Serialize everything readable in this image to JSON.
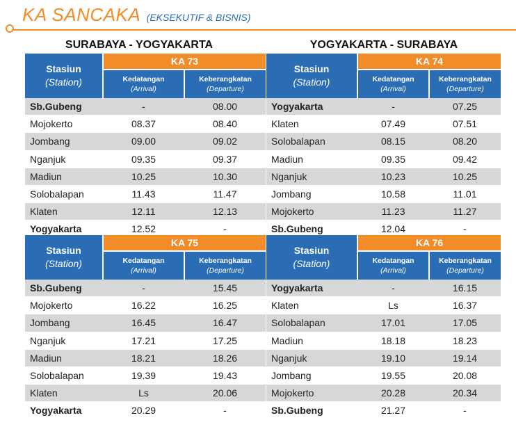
{
  "header": {
    "title": "KA SANCAKA",
    "subtitle": "(EKSEKUTIF & BISNIS)"
  },
  "colors": {
    "orange": "#F28C28",
    "blue": "#2A6DB5",
    "shade": "#D6D7D9"
  },
  "labels": {
    "station": "Stasiun",
    "station_en": "(Station)",
    "arrival": "Kedatangan",
    "arrival_en": "(Arrival)",
    "departure": "Keberangkatan",
    "departure_en": "(Departure)"
  },
  "routes": {
    "sby_yk": "SURABAYA - YOGYAKARTA",
    "yk_sby": "YOGYAKARTA - SURABAYA"
  },
  "tables": [
    {
      "train": "KA 73",
      "rows": [
        [
          "Sb.Gubeng",
          "-",
          "08.00"
        ],
        [
          "Mojokerto",
          "08.37",
          "08.40"
        ],
        [
          "Jombang",
          "09.00",
          "09.02"
        ],
        [
          "Nganjuk",
          "09.35",
          "09.37"
        ],
        [
          "Madiun",
          "10.25",
          "10.30"
        ],
        [
          "Solobalapan",
          "11.43",
          "11.47"
        ],
        [
          "Klaten",
          "12.11",
          "12.13"
        ],
        [
          "Yogyakarta",
          "12.52",
          "-"
        ]
      ]
    },
    {
      "train": "KA 74",
      "rows": [
        [
          "Yogyakarta",
          "-",
          "07.25"
        ],
        [
          "Klaten",
          "07.49",
          "07.51"
        ],
        [
          "Solobalapan",
          "08.15",
          "08.20"
        ],
        [
          "Madiun",
          "09.35",
          "09.42"
        ],
        [
          "Nganjuk",
          "10.23",
          "10.25"
        ],
        [
          "Jombang",
          "10.58",
          "11.01"
        ],
        [
          "Mojokerto",
          "11.23",
          "11.27"
        ],
        [
          "Sb.Gubeng",
          "12.04",
          "-"
        ]
      ]
    },
    {
      "train": "KA 75",
      "rows": [
        [
          "Sb.Gubeng",
          "-",
          "15.45"
        ],
        [
          "Mojokerto",
          "16.22",
          "16.25"
        ],
        [
          "Jombang",
          "16.45",
          "16.47"
        ],
        [
          "Nganjuk",
          "17.21",
          "17.25"
        ],
        [
          "Madiun",
          "18.21",
          "18.26"
        ],
        [
          "Solobalapan",
          "19.39",
          "19.43"
        ],
        [
          "Klaten",
          "Ls",
          "20.06"
        ],
        [
          "Yogyakarta",
          "20.29",
          "-"
        ]
      ]
    },
    {
      "train": "KA 76",
      "rows": [
        [
          "Yogyakarta",
          "-",
          "16.15"
        ],
        [
          "Klaten",
          "Ls",
          "16.37"
        ],
        [
          "Solobalapan",
          "17.01",
          "17.05"
        ],
        [
          "Madiun",
          "18.18",
          "18.23"
        ],
        [
          "Nganjuk",
          "19.10",
          "19.14"
        ],
        [
          "Jombang",
          "19.55",
          "20.08"
        ],
        [
          "Mojokerto",
          "20.28",
          "20.34"
        ],
        [
          "Sb.Gubeng",
          "21.27",
          "-"
        ]
      ]
    }
  ]
}
